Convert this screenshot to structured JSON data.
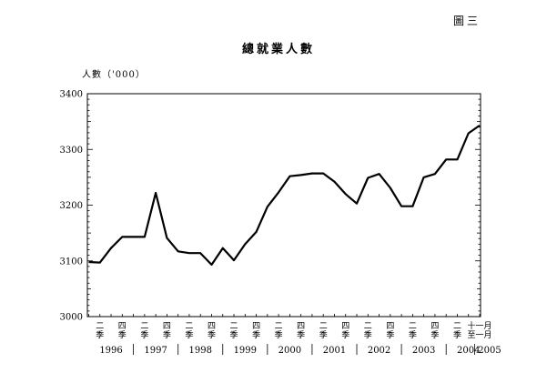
{
  "figure_label": "圖三",
  "chart_data": {
    "type": "line",
    "title": "總就業人數",
    "ylabel": "人數（'000）",
    "ylim": [
      3000,
      3400
    ],
    "yticks": [
      3000,
      3100,
      3200,
      3300,
      3400
    ],
    "grid": false,
    "quarter_labels": [
      "二季",
      "四季"
    ],
    "last_label": "十一月至一月",
    "years": [
      "1996",
      "1997",
      "1998",
      "1999",
      "2000",
      "2001",
      "2002",
      "2003",
      "2004",
      "2005"
    ],
    "series": [
      {
        "values": [
          3098,
          3097,
          3123,
          3143,
          3143,
          3143,
          3222,
          3141,
          3117,
          3114,
          3114,
          3093,
          3123,
          3101,
          3130,
          3152,
          3197,
          3223,
          3252,
          3254,
          3257,
          3257,
          3242,
          3220,
          3203,
          3249,
          3256,
          3231,
          3198,
          3198,
          3250,
          3256,
          3282,
          3282,
          3329,
          3343
        ]
      }
    ]
  }
}
